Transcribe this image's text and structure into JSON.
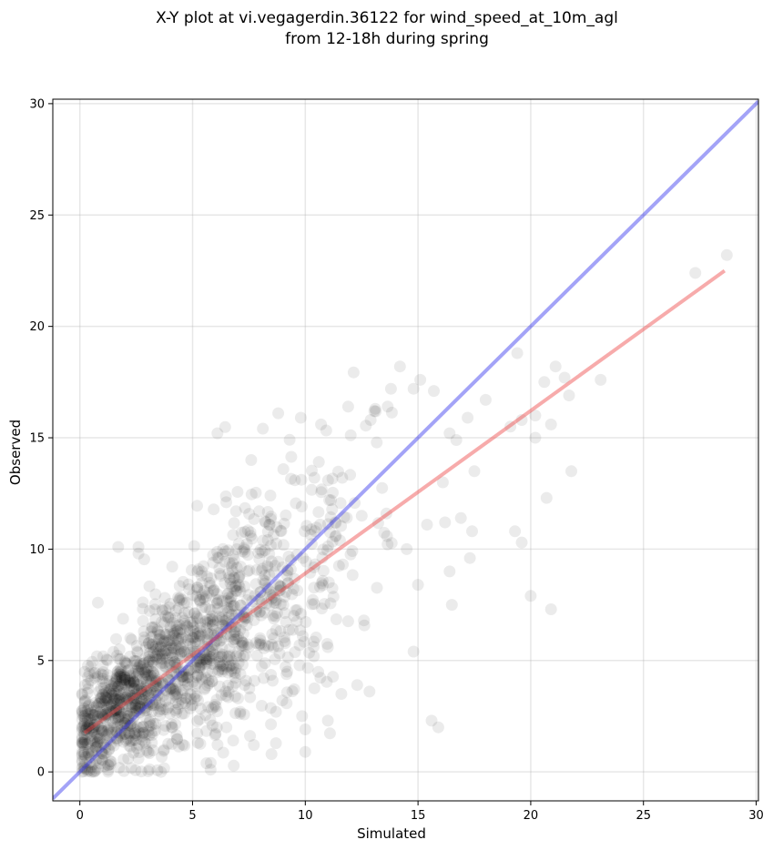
{
  "chart_data": {
    "type": "scatter",
    "title": "X-Y plot at vi.vegagerdin.36122 for wind_speed_at_10m_agl",
    "subtitle": "from 12-18h during spring",
    "xlabel": "Simulated",
    "ylabel": "Observed",
    "xlim": [
      -1.2,
      30.1
    ],
    "ylim": [
      -1.3,
      30.2
    ],
    "xticks": [
      0,
      5,
      10,
      15,
      20,
      25,
      30
    ],
    "yticks": [
      0,
      5,
      10,
      15,
      20,
      25,
      30
    ],
    "grid": true,
    "identity_line": {
      "x": [
        -1.2,
        30.1
      ],
      "y": [
        -1.2,
        30.1
      ],
      "color": "#3333ee"
    },
    "regression_line": {
      "x": [
        0.2,
        28.6
      ],
      "y": [
        1.75,
        22.5
      ],
      "color": "#ee4444"
    },
    "point_color": "#000000",
    "sample_points": [
      {
        "x": 27.3,
        "y": 22.4
      },
      {
        "x": 28.7,
        "y": 23.2
      },
      {
        "x": 23.1,
        "y": 17.6
      },
      {
        "x": 21.5,
        "y": 17.7
      },
      {
        "x": 21.7,
        "y": 16.9
      },
      {
        "x": 21.8,
        "y": 13.5
      },
      {
        "x": 20.7,
        "y": 12.3
      },
      {
        "x": 20.9,
        "y": 7.3
      },
      {
        "x": 20.0,
        "y": 7.9
      },
      {
        "x": 19.4,
        "y": 18.8
      },
      {
        "x": 19.6,
        "y": 15.8
      },
      {
        "x": 20.2,
        "y": 15.0
      },
      {
        "x": 19.3,
        "y": 10.8
      },
      {
        "x": 19.6,
        "y": 10.3
      },
      {
        "x": 21.1,
        "y": 18.2
      },
      {
        "x": 18.0,
        "y": 16.7
      },
      {
        "x": 17.5,
        "y": 13.5
      },
      {
        "x": 17.4,
        "y": 10.8
      },
      {
        "x": 17.3,
        "y": 9.6
      },
      {
        "x": 16.5,
        "y": 7.5
      },
      {
        "x": 16.4,
        "y": 9.0
      },
      {
        "x": 15.6,
        "y": 2.3
      },
      {
        "x": 15.9,
        "y": 2.0
      },
      {
        "x": 14.8,
        "y": 5.4
      },
      {
        "x": 15.0,
        "y": 8.4
      },
      {
        "x": 14.2,
        "y": 18.2
      },
      {
        "x": 15.1,
        "y": 17.6
      },
      {
        "x": 15.7,
        "y": 17.1
      },
      {
        "x": 14.8,
        "y": 17.2
      },
      {
        "x": 13.8,
        "y": 17.2
      },
      {
        "x": 9.8,
        "y": 15.9
      },
      {
        "x": 8.8,
        "y": 16.1
      },
      {
        "x": 6.1,
        "y": 15.2
      },
      {
        "x": 7.6,
        "y": 14.0
      },
      {
        "x": 10.7,
        "y": 15.6
      },
      {
        "x": 12.9,
        "y": 15.8
      },
      {
        "x": 13.1,
        "y": 16.3
      },
      {
        "x": 11.9,
        "y": 16.4
      },
      {
        "x": 1.7,
        "y": 10.1
      },
      {
        "x": 2.6,
        "y": 10.1
      },
      {
        "x": 2.6,
        "y": 9.8
      },
      {
        "x": 3.6,
        "y": 0.0
      },
      {
        "x": 0.8,
        "y": 7.6
      },
      {
        "x": 5.8,
        "y": 0.1
      },
      {
        "x": 10.0,
        "y": 0.9
      },
      {
        "x": 11.0,
        "y": 2.3
      },
      {
        "x": 11.6,
        "y": 3.5
      },
      {
        "x": 12.3,
        "y": 3.9
      },
      {
        "x": 12.6,
        "y": 6.8
      },
      {
        "x": 11.0,
        "y": 5.6
      },
      {
        "x": 9.2,
        "y": 4.5
      },
      {
        "x": 8.7,
        "y": 2.7
      },
      {
        "x": 8.5,
        "y": 0.8
      },
      {
        "x": 14.5,
        "y": 10.0
      },
      {
        "x": 15.4,
        "y": 11.1
      },
      {
        "x": 16.2,
        "y": 11.2
      },
      {
        "x": 16.9,
        "y": 11.4
      },
      {
        "x": 16.1,
        "y": 13.0
      },
      {
        "x": 16.7,
        "y": 14.9
      },
      {
        "x": 17.2,
        "y": 15.9
      },
      {
        "x": 16.4,
        "y": 15.2
      },
      {
        "x": 19.1,
        "y": 15.5
      },
      {
        "x": 20.2,
        "y": 16.0
      },
      {
        "x": 20.9,
        "y": 15.6
      },
      {
        "x": 20.6,
        "y": 17.5
      }
    ]
  }
}
